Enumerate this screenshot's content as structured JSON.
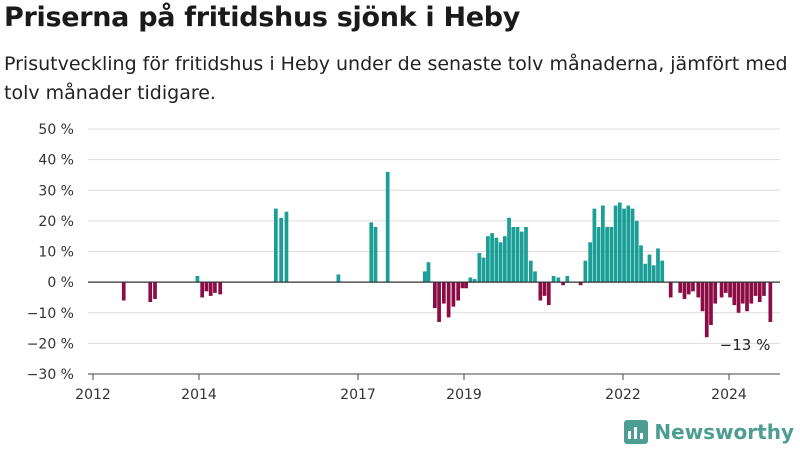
{
  "header": {
    "title": "Priserna på fritidshus sjönk i Heby",
    "subtitle": "Prisutveckling för fritidshus i Heby under de senaste tolv månaderna, jämfört med tolv månader tidigare."
  },
  "brand": {
    "name": "Newsworthy"
  },
  "colors": {
    "positive": "#1a9e96",
    "negative": "#8c0c45",
    "grid": "#dddddd",
    "baseline": "#333333"
  },
  "chart_data": {
    "type": "bar",
    "ylim": [
      -30,
      50
    ],
    "yticks": [
      50,
      40,
      30,
      20,
      10,
      0,
      -10,
      -20,
      -30
    ],
    "ytick_labels": [
      "50 %",
      "40 %",
      "30 %",
      "20 %",
      "10 %",
      "0 %",
      "−10 %",
      "−20 %",
      "−30 %"
    ],
    "xlim": [
      2012.0,
      2025.5
    ],
    "xticks": [
      2012,
      2014,
      2017,
      2019,
      2022,
      2024
    ],
    "xtick_labels": [
      "2012",
      "2014",
      "2017",
      "2019",
      "2022",
      "2024"
    ],
    "bar_width_years": 0.07,
    "points": [
      [
        2012.58,
        -6
      ],
      [
        2013.08,
        -6.5
      ],
      [
        2013.17,
        -5.5
      ],
      [
        2013.97,
        2
      ],
      [
        2014.06,
        -5
      ],
      [
        2014.14,
        -3
      ],
      [
        2014.22,
        -4.5
      ],
      [
        2014.3,
        -3.5
      ],
      [
        2014.4,
        -4
      ],
      [
        2015.45,
        24
      ],
      [
        2015.55,
        21
      ],
      [
        2015.65,
        23
      ],
      [
        2016.63,
        2.5
      ],
      [
        2017.25,
        19.5
      ],
      [
        2017.33,
        18
      ],
      [
        2017.56,
        36
      ],
      [
        2018.26,
        3.5
      ],
      [
        2018.33,
        6.5
      ],
      [
        2018.45,
        -8.5
      ],
      [
        2018.53,
        -13
      ],
      [
        2018.62,
        -7
      ],
      [
        2018.71,
        -11.5
      ],
      [
        2018.8,
        -8
      ],
      [
        2018.89,
        -6
      ],
      [
        2018.97,
        -2
      ],
      [
        2019.04,
        -2
      ],
      [
        2019.12,
        1.5
      ],
      [
        2019.2,
        1
      ],
      [
        2019.29,
        9.5
      ],
      [
        2019.37,
        8
      ],
      [
        2019.45,
        15
      ],
      [
        2019.53,
        16
      ],
      [
        2019.61,
        14.5
      ],
      [
        2019.69,
        13
      ],
      [
        2019.77,
        15
      ],
      [
        2019.85,
        21
      ],
      [
        2019.93,
        18
      ],
      [
        2020.01,
        18
      ],
      [
        2020.09,
        16.5
      ],
      [
        2020.17,
        18
      ],
      [
        2020.26,
        7
      ],
      [
        2020.34,
        3.5
      ],
      [
        2020.44,
        -6
      ],
      [
        2020.52,
        -4.5
      ],
      [
        2020.6,
        -7.5
      ],
      [
        2020.69,
        2
      ],
      [
        2020.78,
        1.5
      ],
      [
        2020.87,
        -1
      ],
      [
        2020.95,
        2
      ],
      [
        2021.2,
        -1
      ],
      [
        2021.29,
        7
      ],
      [
        2021.38,
        13
      ],
      [
        2021.46,
        24
      ],
      [
        2021.54,
        18
      ],
      [
        2021.62,
        25
      ],
      [
        2021.7,
        18
      ],
      [
        2021.78,
        18
      ],
      [
        2021.86,
        25
      ],
      [
        2021.94,
        26
      ],
      [
        2022.02,
        24
      ],
      [
        2022.1,
        25
      ],
      [
        2022.18,
        24
      ],
      [
        2022.26,
        20
      ],
      [
        2022.34,
        12
      ],
      [
        2022.42,
        6
      ],
      [
        2022.5,
        9
      ],
      [
        2022.58,
        5.5
      ],
      [
        2022.66,
        11
      ],
      [
        2022.74,
        7
      ],
      [
        2022.9,
        -5
      ],
      [
        2023.08,
        -3.5
      ],
      [
        2023.16,
        -5.5
      ],
      [
        2023.24,
        -4
      ],
      [
        2023.32,
        -3
      ],
      [
        2023.42,
        -5
      ],
      [
        2023.5,
        -9.5
      ],
      [
        2023.58,
        -18
      ],
      [
        2023.66,
        -14
      ],
      [
        2023.74,
        -7
      ],
      [
        2023.86,
        -5
      ],
      [
        2023.94,
        -3.5
      ],
      [
        2024.02,
        -5
      ],
      [
        2024.1,
        -7.5
      ],
      [
        2024.18,
        -10
      ],
      [
        2024.26,
        -7
      ],
      [
        2024.34,
        -9.5
      ],
      [
        2024.42,
        -7
      ],
      [
        2024.5,
        -4.5
      ],
      [
        2024.58,
        -6.5
      ],
      [
        2024.66,
        -4.5
      ],
      [
        2024.78,
        -13
      ]
    ],
    "annotation": {
      "text": "−13 %",
      "x": 2024.78,
      "y": -13
    }
  }
}
